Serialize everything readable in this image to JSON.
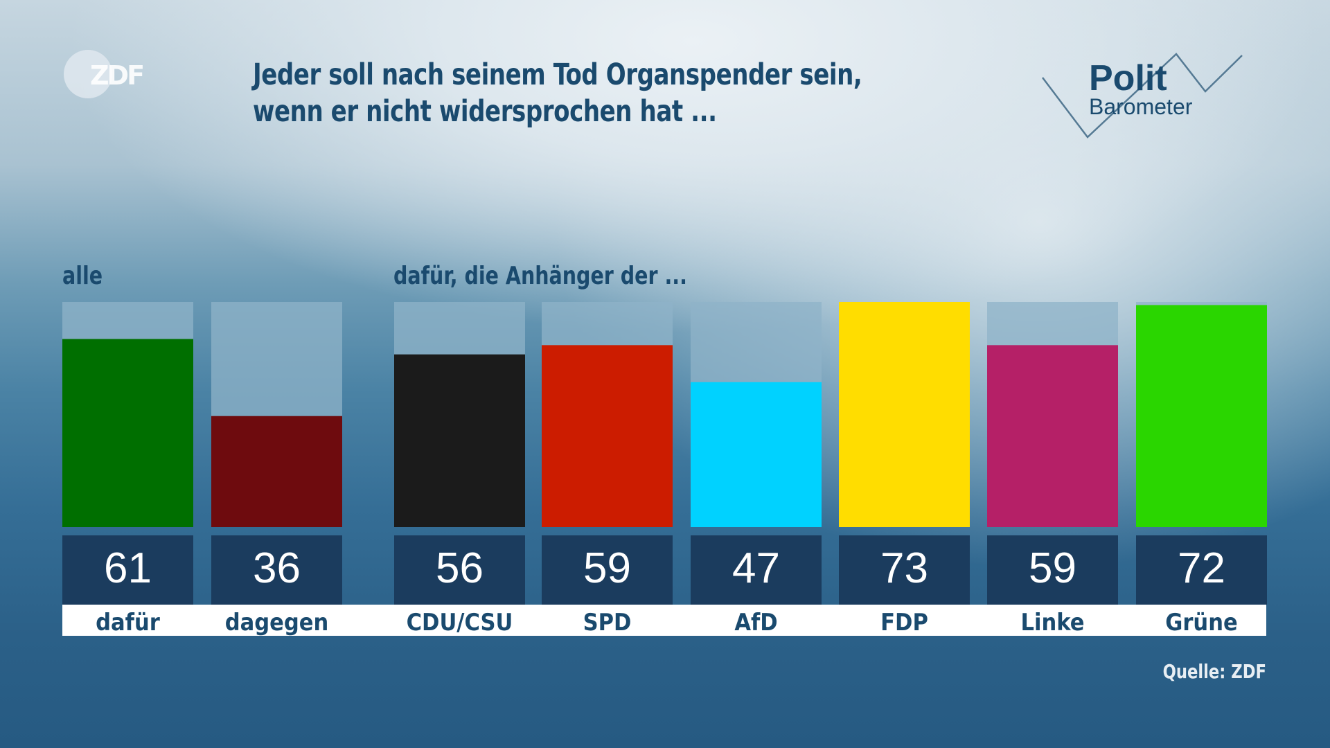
{
  "header": {
    "broadcaster_logo": "ZDF",
    "title_line1": "Jeder soll nach seinem Tod Organspender sein,",
    "title_line2": "wenn er nicht widersprochen hat ...",
    "brand_logo_line1": "Polit",
    "brand_logo_line2": "Barometer"
  },
  "groups": {
    "all_label": "alle",
    "supporters_label": "dafür, die Anhänger der ..."
  },
  "footer": {
    "source": "Quelle: ZDF"
  },
  "colors": {
    "track": "#8fb3c8",
    "value_box": "#1b3c5e",
    "label_bg": "#ffffff",
    "label_text": "#1a4a6e",
    "value_text": "#ffffff"
  },
  "chart_data": {
    "type": "bar",
    "title": "Jeder soll nach seinem Tod Organspender sein, wenn er nicht widersprochen hat ...",
    "unit": "%",
    "ylim": [
      0,
      73
    ],
    "grid": false,
    "groups": [
      {
        "name": "alle",
        "categories": [
          "dafür",
          "dagegen"
        ]
      },
      {
        "name": "dafür, die Anhänger der ...",
        "categories": [
          "CDU/CSU",
          "SPD",
          "AfD",
          "FDP",
          "Linke",
          "Grüne"
        ]
      }
    ],
    "categories": [
      "dafür",
      "dagegen",
      "CDU/CSU",
      "SPD",
      "AfD",
      "FDP",
      "Linke",
      "Grüne"
    ],
    "values": [
      61,
      36,
      56,
      59,
      47,
      73,
      59,
      72
    ],
    "bar_colors": [
      "#006f00",
      "#6e0b0e",
      "#1b1b1b",
      "#cc1c00",
      "#00d2ff",
      "#ffdd00",
      "#b52067",
      "#2ad600"
    ]
  }
}
